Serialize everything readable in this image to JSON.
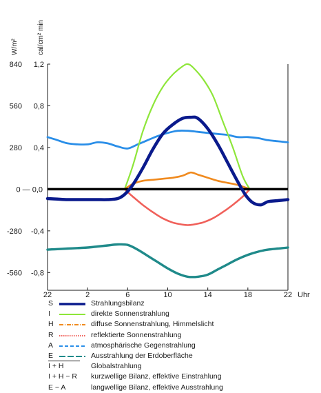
{
  "chart_data": {
    "type": "line",
    "title": "",
    "xlabel": "Uhr",
    "ylabel_left": "W/m²",
    "ylabel_right": "cal/cm² min",
    "x_ticks": [
      "22",
      "2",
      "6",
      "10",
      "14",
      "18",
      "22"
    ],
    "x_tick_values": [
      -2,
      2,
      6,
      10,
      14,
      18,
      22
    ],
    "y_ticks_wm2": [
      "840",
      "560",
      "280",
      "0",
      "-280",
      "-560"
    ],
    "y_ticks_cal": [
      "1,2",
      "0,8",
      "0,4",
      "0,0",
      "-0,4",
      "-0,8"
    ],
    "y_tick_values": [
      1.2,
      0.8,
      0.4,
      0.0,
      -0.4,
      -0.8
    ],
    "zero_tick_label": "0 — 0,0",
    "xlim": [
      -2,
      22
    ],
    "ylim": [
      -0.97,
      1.2
    ],
    "grid": false,
    "series": [
      {
        "key": "I",
        "name": "direkte Sonnenstrahlung",
        "color": "#8ee63a",
        "x": [
          5.7,
          6.5,
          7.5,
          8.5,
          9.5,
          10.5,
          11.5,
          12.0,
          12.5,
          13.5,
          14.5,
          15.5,
          16.5,
          17.5,
          18.2
        ],
        "y": [
          0.0,
          0.22,
          0.55,
          0.8,
          0.98,
          1.1,
          1.18,
          1.2,
          1.17,
          1.06,
          0.9,
          0.65,
          0.4,
          0.12,
          0.0
        ]
      },
      {
        "key": "A",
        "name": "atmosphärische Gegenstrahlung",
        "color": "#2a8ee8",
        "x": [
          -2,
          -1,
          0,
          1,
          2,
          3,
          4,
          5,
          6,
          7,
          8,
          9,
          10,
          11,
          12,
          13,
          14,
          15,
          16,
          17,
          18,
          19,
          20,
          21,
          22
        ],
        "y": [
          0.5,
          0.47,
          0.44,
          0.43,
          0.43,
          0.45,
          0.44,
          0.41,
          0.39,
          0.43,
          0.47,
          0.51,
          0.54,
          0.56,
          0.56,
          0.55,
          0.54,
          0.53,
          0.52,
          0.5,
          0.5,
          0.49,
          0.47,
          0.46,
          0.45
        ]
      },
      {
        "key": "H",
        "name": "diffuse Sonnenstrahlung, Himmelslicht",
        "color": "#f08a1e",
        "x": [
          5.7,
          6.5,
          7.5,
          8.5,
          9.5,
          10.5,
          11.5,
          12.3,
          13.0,
          14.0,
          15.0,
          16.0,
          17.0,
          18.2
        ],
        "y": [
          0.0,
          0.05,
          0.08,
          0.09,
          0.1,
          0.11,
          0.13,
          0.16,
          0.14,
          0.11,
          0.08,
          0.06,
          0.04,
          0.0
        ]
      },
      {
        "key": "R",
        "name": "reflektierte Sonnenstrahlung",
        "color": "#f0605a",
        "x": [
          5.7,
          6.5,
          7.5,
          8.5,
          9.5,
          10.5,
          11.5,
          12.0,
          12.5,
          13.5,
          14.5,
          15.5,
          16.5,
          17.5,
          18.2
        ],
        "y": [
          0.0,
          -0.07,
          -0.15,
          -0.22,
          -0.28,
          -0.32,
          -0.34,
          -0.345,
          -0.34,
          -0.32,
          -0.28,
          -0.22,
          -0.15,
          -0.07,
          0.0
        ]
      },
      {
        "key": "E",
        "name": "Ausstrahlung der Erdoberfläche",
        "color": "#1f8a8a",
        "x": [
          -2,
          -1,
          0,
          1,
          2,
          3,
          4,
          5,
          6,
          7,
          8,
          9,
          10,
          11,
          12,
          13,
          14,
          15,
          16,
          17,
          18,
          19,
          20,
          21,
          22
        ],
        "y": [
          -0.58,
          -0.575,
          -0.57,
          -0.565,
          -0.56,
          -0.55,
          -0.54,
          -0.53,
          -0.535,
          -0.58,
          -0.64,
          -0.7,
          -0.76,
          -0.81,
          -0.84,
          -0.84,
          -0.82,
          -0.77,
          -0.72,
          -0.67,
          -0.63,
          -0.6,
          -0.58,
          -0.57,
          -0.56
        ]
      },
      {
        "key": "S",
        "name": "Strahlungsbilanz",
        "color": "#0a1a8c",
        "x": [
          -2,
          -1,
          0,
          1,
          2,
          3,
          4,
          5,
          5.7,
          6.5,
          7.5,
          8.5,
          9.5,
          10.5,
          11.5,
          12.3,
          13.0,
          14.0,
          15.0,
          16.0,
          17.0,
          17.8,
          18.5,
          19.3,
          20.0,
          21.0,
          22
        ],
        "y": [
          -0.09,
          -0.095,
          -0.1,
          -0.1,
          -0.1,
          -0.1,
          -0.1,
          -0.09,
          -0.05,
          0.04,
          0.2,
          0.38,
          0.53,
          0.62,
          0.68,
          0.69,
          0.68,
          0.58,
          0.43,
          0.25,
          0.07,
          -0.06,
          -0.13,
          -0.15,
          -0.12,
          -0.11,
          -0.1
        ]
      }
    ],
    "zero_line": {
      "y": 0,
      "color": "#000000"
    }
  },
  "legend": {
    "items": [
      {
        "symbol": "S",
        "label": "Strahlungsbilanz",
        "color": "#0a1a8c",
        "style": "bold"
      },
      {
        "symbol": "I",
        "label": "direkte Sonnenstrahlung",
        "color": "#8ee63a",
        "style": "solid"
      },
      {
        "symbol": "H",
        "label": "diffuse Sonnenstrahlung, Himmelslicht",
        "color": "#f08a1e",
        "style": "dashdot"
      },
      {
        "symbol": "R",
        "label": "reflektierte Sonnenstrahlung",
        "color": "#f0605a",
        "style": "dotted"
      },
      {
        "symbol": "A",
        "label": "atmosphärische Gegenstrahlung",
        "color": "#2a8ee8",
        "style": "dashed"
      },
      {
        "symbol": "E",
        "label": "Ausstrahlung der Erdoberfläche",
        "color": "#1f8a8a",
        "style": "longdash"
      }
    ],
    "combos": [
      {
        "symbol": "I + H",
        "label": "Globalstrahlung"
      },
      {
        "symbol": "I + H − R",
        "label": "kurzwellige Bilanz, effektive Einstrahlung"
      },
      {
        "symbol": "E − A",
        "label": "langwellige Bilanz, effektive Ausstrahlung"
      }
    ]
  }
}
